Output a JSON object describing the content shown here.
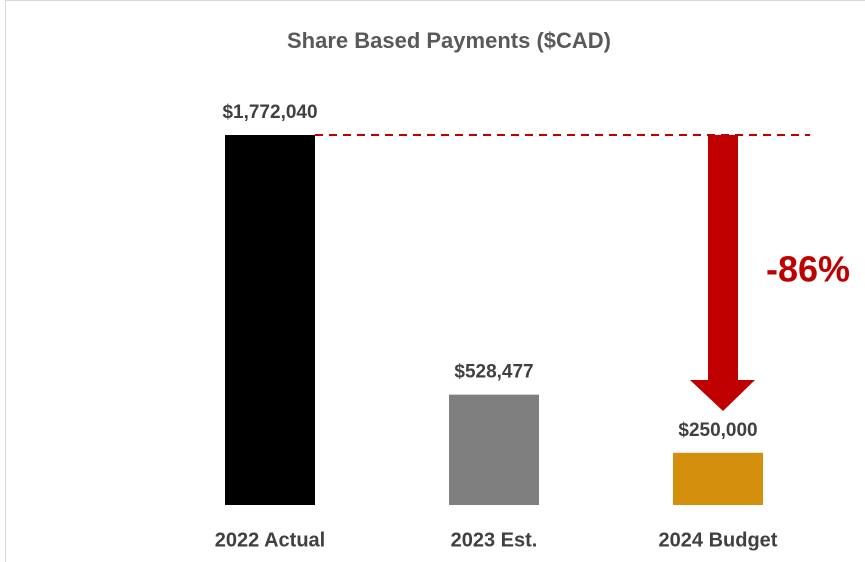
{
  "chart_data": {
    "type": "bar",
    "title": "Share Based Payments ($CAD)",
    "categories": [
      "2022 Actual",
      "2023 Est.",
      "2024 Budget"
    ],
    "values": [
      1772040,
      528477,
      250000
    ],
    "value_labels": [
      "$1,772,040",
      "$528,477",
      "$250,000"
    ],
    "colors": [
      "#000000",
      "#7f7f7f",
      "#d4900c"
    ],
    "annotation": "-86%",
    "annotation_color": "#c00000"
  }
}
